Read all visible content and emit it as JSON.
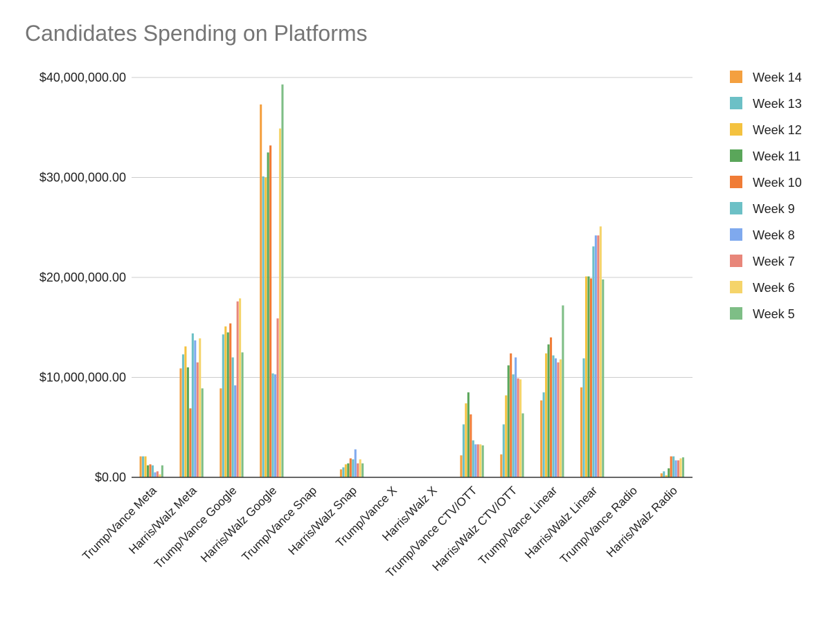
{
  "chart_data": {
    "type": "bar",
    "title": "Candidates Spending on Platforms",
    "xlabel": "",
    "ylabel": "",
    "ylim": [
      0,
      40000000
    ],
    "yticks": [
      {
        "value": 0,
        "label": "$0.00"
      },
      {
        "value": 10000000,
        "label": "$10,000,000.00"
      },
      {
        "value": 20000000,
        "label": "$20,000,000.00"
      },
      {
        "value": 30000000,
        "label": "$30,000,000.00"
      },
      {
        "value": 40000000,
        "label": "$40,000,000.00"
      }
    ],
    "grid": true,
    "legend_position": "right",
    "categories": [
      "Trump/Vance Meta",
      "Harris/Walz Meta",
      "Trump/Vance Google",
      "Harris/Walz Google",
      "Trump/Vance Snap",
      "Harris/Walz Snap",
      "Trump/Vance X",
      "Harris/Walz X",
      "Trump/Vance CTV/OTT",
      "Harris/Walz CTV/OTT",
      "Trump/Vance Linear",
      "Harris/Walz Linear",
      "Trump/Vance Radio",
      "Harris/Walz Radio"
    ],
    "series": [
      {
        "name": "Week 14",
        "color": "#F4A03F",
        "values": [
          2100000,
          10900000,
          8900000,
          37300000,
          0,
          800000,
          0,
          0,
          2200000,
          2300000,
          7700000,
          9000000,
          0,
          400000
        ]
      },
      {
        "name": "Week 13",
        "color": "#6CC0C6",
        "values": [
          2100000,
          12300000,
          14300000,
          30100000,
          0,
          1000000,
          0,
          0,
          5300000,
          5300000,
          8500000,
          11900000,
          0,
          600000
        ]
      },
      {
        "name": "Week 12",
        "color": "#F4C23F",
        "values": [
          2100000,
          13100000,
          15100000,
          30000000,
          0,
          1300000,
          0,
          0,
          7400000,
          8200000,
          12400000,
          20100000,
          0,
          200000
        ]
      },
      {
        "name": "Week 11",
        "color": "#5AA65A",
        "values": [
          1200000,
          11000000,
          14500000,
          32500000,
          0,
          1400000,
          0,
          0,
          8500000,
          11200000,
          13300000,
          20100000,
          0,
          900000
        ]
      },
      {
        "name": "Week 10",
        "color": "#F07C36",
        "values": [
          1300000,
          6900000,
          15400000,
          33200000,
          0,
          1900000,
          0,
          0,
          6300000,
          12400000,
          14000000,
          19900000,
          0,
          2100000
        ]
      },
      {
        "name": "Week 9",
        "color": "#6CC0C6",
        "values": [
          1200000,
          14400000,
          12000000,
          10400000,
          0,
          1800000,
          0,
          0,
          3700000,
          10300000,
          12200000,
          23100000,
          0,
          2100000
        ]
      },
      {
        "name": "Week 8",
        "color": "#7FA9EE",
        "values": [
          500000,
          13700000,
          9200000,
          10300000,
          0,
          2800000,
          0,
          0,
          3300000,
          12000000,
          11900000,
          24200000,
          0,
          1700000
        ]
      },
      {
        "name": "Week 7",
        "color": "#E8867A",
        "values": [
          600000,
          11500000,
          17600000,
          15900000,
          0,
          1400000,
          0,
          0,
          3300000,
          9900000,
          11500000,
          24200000,
          0,
          1700000
        ]
      },
      {
        "name": "Week 6",
        "color": "#F5D46A",
        "values": [
          300000,
          13900000,
          17900000,
          34900000,
          0,
          1800000,
          0,
          0,
          3300000,
          9800000,
          11800000,
          25100000,
          0,
          1900000
        ]
      },
      {
        "name": "Week 5",
        "color": "#7EBE86",
        "values": [
          1200000,
          8900000,
          12500000,
          39300000,
          0,
          1400000,
          0,
          0,
          3200000,
          6400000,
          17200000,
          19800000,
          0,
          2000000
        ]
      }
    ]
  }
}
